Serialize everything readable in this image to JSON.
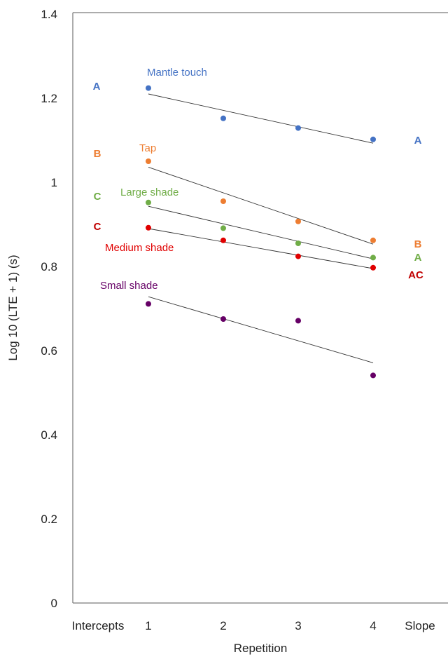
{
  "chart_data": {
    "type": "scatter",
    "xlabel": "Repetition",
    "ylabel": "Log 10 (LTE + 1) (s)",
    "x_categories": [
      "Intercepts",
      "1",
      "2",
      "3",
      "4",
      "Slope"
    ],
    "x": [
      1,
      2,
      3,
      4
    ],
    "ylim": [
      0,
      1.4
    ],
    "yticks": [
      "0",
      "0.2",
      "0.4",
      "0.6",
      "0.8",
      "1",
      "1.2",
      "1.4"
    ],
    "grid": false,
    "trendlines": true,
    "series": [
      {
        "name": "Mantle touch",
        "color": "#4472C4",
        "values": [
          1.224,
          1.152,
          1.129,
          1.102
        ],
        "trend": [
          1.21,
          1.093
        ],
        "intercept_group": "A",
        "slope_group": "A",
        "group_color": "#4472C4"
      },
      {
        "name": "Tap",
        "color": "#ED7D31",
        "values": [
          1.05,
          0.955,
          0.907,
          0.862
        ],
        "trend": [
          1.036,
          0.853
        ],
        "intercept_group": "B",
        "slope_group": "B",
        "group_color": "#ED7D31"
      },
      {
        "name": "Large shade",
        "color": "#70AD47",
        "values": [
          0.952,
          0.891,
          0.855,
          0.821
        ],
        "trend": [
          0.943,
          0.818
        ],
        "intercept_group": "C",
        "slope_group": "A",
        "group_color": "#70AD47"
      },
      {
        "name": "Medium shade",
        "color": "#E00000",
        "values": [
          0.892,
          0.862,
          0.824,
          0.797
        ],
        "trend": [
          0.89,
          0.795
        ],
        "intercept_group": "C",
        "slope_group": "AC",
        "group_color": "#C00000"
      },
      {
        "name": "Small shade",
        "color": "#660066",
        "values": [
          0.711,
          0.675,
          0.671,
          0.541
        ],
        "trend": [
          0.728,
          0.571
        ],
        "intercept_group": "",
        "slope_group": "",
        "group_color": "#660066"
      }
    ]
  }
}
